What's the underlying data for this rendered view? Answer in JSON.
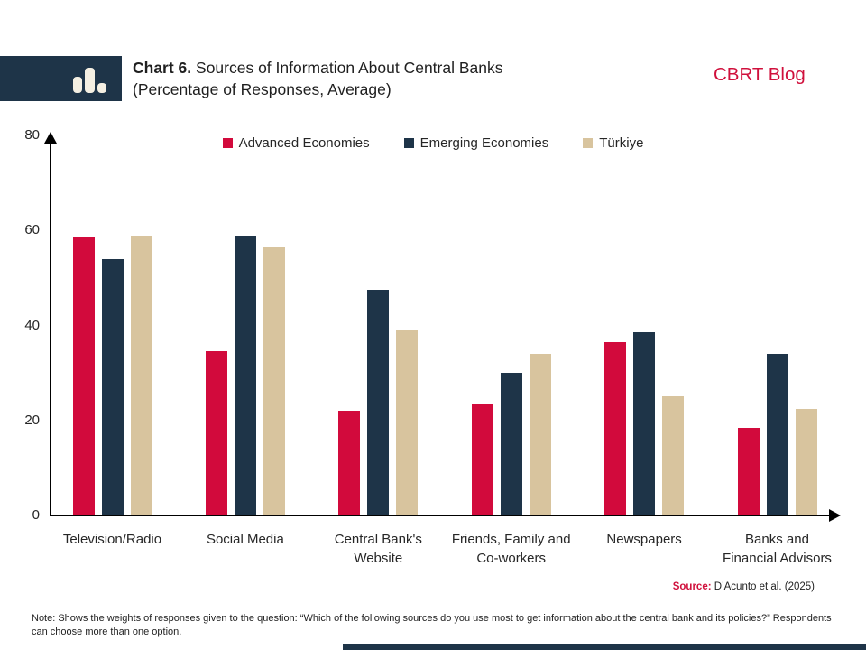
{
  "header": {
    "title_prefix": "Chart 6.",
    "title_rest": " Sources of Information About Central Banks",
    "title_line2": "(Percentage of Responses, Average)",
    "brand": "CBRT Blog"
  },
  "colors": {
    "navy": "#1e3448",
    "red": "#d20a3c",
    "tan": "#d8c49e",
    "brand_red": "#d0103c"
  },
  "chart_data": {
    "type": "bar",
    "title": "Sources of Information About Central Banks (Percentage of Responses, Average)",
    "categories": [
      "Television/Radio",
      "Social Media",
      "Central Bank's\nWebsite",
      "Friends, Family and\nCo-workers",
      "Newspapers",
      "Banks and\nFinancial Advisors"
    ],
    "series": [
      {
        "name": "Advanced Economies",
        "color": "#d20a3c",
        "values": [
          58.5,
          34.5,
          22,
          23.5,
          36.5,
          18.5
        ]
      },
      {
        "name": "Emerging Economies",
        "color": "#1e3448",
        "values": [
          54,
          59,
          47.5,
          30,
          38.5,
          34
        ]
      },
      {
        "name": "Türkiye",
        "color": "#d8c49e",
        "values": [
          59,
          56.5,
          39,
          34,
          25,
          22.5
        ]
      }
    ],
    "ylabel": "",
    "xlabel": "",
    "ylim": [
      0,
      80
    ],
    "yticks": [
      0,
      20,
      40,
      60,
      80
    ],
    "legend_position": "top",
    "grid": false
  },
  "footer": {
    "source_label": "Source:",
    "source_text": "D’Acunto et al. (2025)",
    "note": "Note: Shows the weights of responses given to the question: “Which of the following sources do you use most to get information about the central bank and its policies?” Respondents can choose more than one option."
  }
}
